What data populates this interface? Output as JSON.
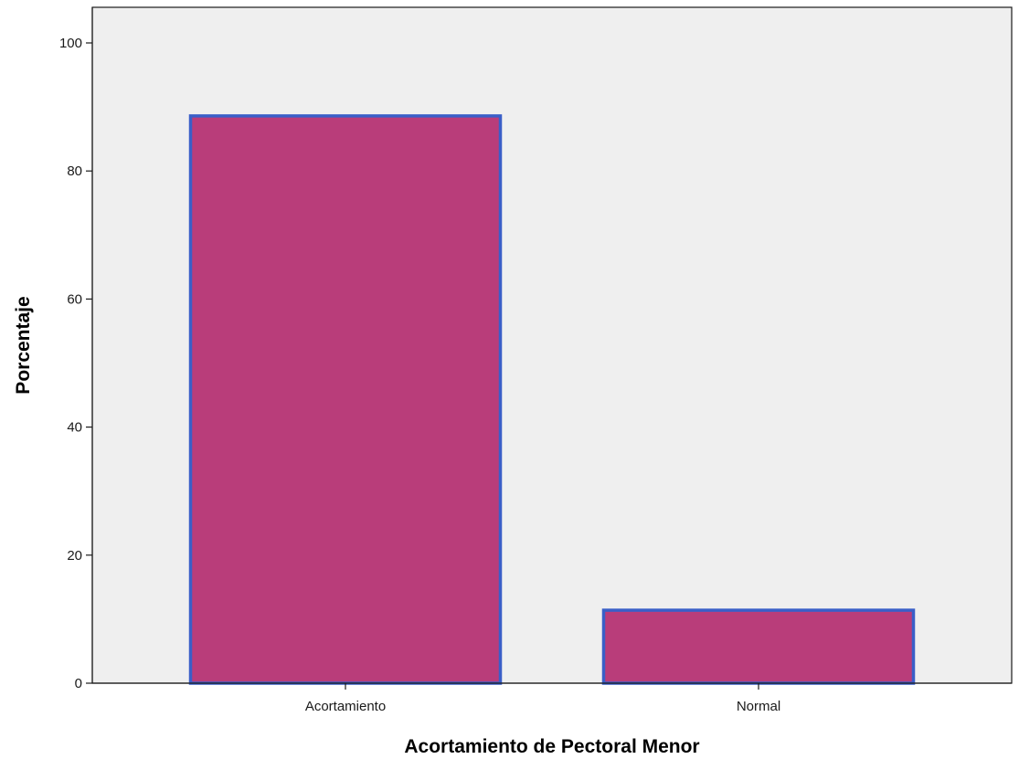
{
  "chart_data": {
    "type": "bar",
    "title": "",
    "xlabel": "Acortamiento de Pectoral Menor",
    "ylabel": "Porcentaje",
    "categories": [
      "Acortamiento",
      "Normal"
    ],
    "values": [
      88.6,
      11.4
    ],
    "ylim": [
      0,
      100
    ],
    "yticks": [
      0,
      20,
      40,
      60,
      80,
      100
    ],
    "ytick_labels": [
      "0",
      "20",
      "40",
      "60",
      "80",
      "100"
    ],
    "grid": false,
    "legend": "none",
    "colors": {
      "bar_fill": "#b93d7a",
      "bar_edge": "#3a5fc8",
      "plot_background": "#efefef",
      "axis": "#1a1a1a"
    }
  }
}
